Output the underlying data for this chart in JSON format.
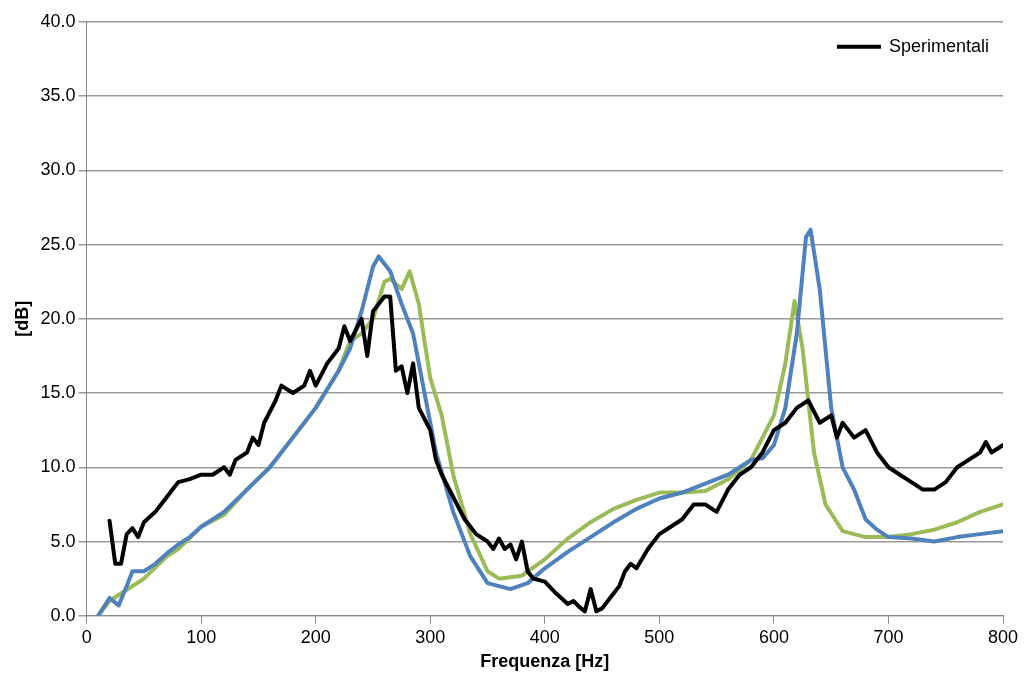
{
  "chart_data": {
    "type": "line",
    "xlabel": "Frequenza [Hz]",
    "ylabel": "[dB]",
    "xlim": [
      0,
      800
    ],
    "xticks": [
      0,
      100,
      200,
      300,
      400,
      500,
      600,
      700,
      800
    ],
    "ylim": [
      0,
      40
    ],
    "yticks": [
      {
        "value": 0,
        "label": "0.0"
      },
      {
        "value": 5,
        "label": "5.0"
      },
      {
        "value": 10,
        "label": "10.0"
      },
      {
        "value": 15,
        "label": "15.0"
      },
      {
        "value": 20,
        "label": "20.0"
      },
      {
        "value": 25,
        "label": "25.0"
      },
      {
        "value": 30,
        "label": "30.0"
      },
      {
        "value": 35,
        "label": "35.0"
      },
      {
        "value": 40,
        "label": "40.0"
      }
    ],
    "grid": "y",
    "legend": "top right",
    "marker": "none",
    "line_style": "solid",
    "series": [
      {
        "name": "Sperimentali",
        "color": "#000000",
        "x": [
          20,
          25,
          30,
          35,
          40,
          45,
          50,
          60,
          70,
          75,
          80,
          90,
          100,
          110,
          120,
          125,
          130,
          140,
          145,
          150,
          155,
          165,
          170,
          180,
          190,
          195,
          200,
          210,
          220,
          225,
          230,
          240,
          245,
          250,
          260,
          265,
          270,
          275,
          280,
          285,
          290,
          300,
          305,
          310,
          320,
          330,
          340,
          350,
          355,
          360,
          365,
          370,
          375,
          380,
          385,
          390,
          400,
          410,
          420,
          425,
          430,
          435,
          440,
          445,
          450,
          460,
          465,
          470,
          475,
          480,
          490,
          500,
          510,
          520,
          530,
          540,
          550,
          560,
          570,
          580,
          590,
          600,
          610,
          620,
          630,
          640,
          650,
          655,
          660,
          670,
          680,
          690,
          700,
          710,
          720,
          730,
          740,
          750,
          760,
          770,
          780,
          785,
          790,
          800
        ],
        "values": [
          6.4,
          3.5,
          3.5,
          5.5,
          5.9,
          5.3,
          6.3,
          7,
          8,
          8.5,
          9,
          9.2,
          9.5,
          9.5,
          10,
          9.5,
          10.5,
          11,
          12,
          11.5,
          13,
          14.5,
          15.5,
          15,
          15.5,
          16.5,
          15.5,
          17,
          18,
          19.5,
          18.5,
          20,
          17.5,
          20.5,
          21.5,
          21.5,
          16.5,
          16.8,
          15,
          17,
          14,
          12.5,
          10.5,
          9.5,
          8,
          6.5,
          5.5,
          5,
          4.5,
          5.2,
          4.5,
          4.8,
          3.8,
          5,
          3,
          2.5,
          2.3,
          1.5,
          0.8,
          1,
          0.6,
          0.3,
          1.8,
          0.3,
          0.5,
          1.5,
          2,
          3,
          3.5,
          3.2,
          4.5,
          5.5,
          6,
          6.5,
          7.5,
          7.5,
          7,
          8.5,
          9.5,
          10,
          11,
          12.5,
          13,
          14,
          14.5,
          13,
          13.5,
          12,
          13,
          12,
          12.5,
          11,
          10,
          9.5,
          9,
          8.5,
          8.5,
          9,
          10,
          10.5,
          11,
          11.7,
          11,
          11.5
        ]
      },
      {
        "color": "#4f81bd",
        "x": [
          10,
          20,
          28,
          35,
          40,
          50,
          60,
          70,
          80,
          90,
          100,
          120,
          140,
          160,
          180,
          200,
          220,
          230,
          240,
          250,
          255,
          265,
          275,
          285,
          295,
          305,
          320,
          335,
          350,
          370,
          385,
          400,
          420,
          440,
          460,
          480,
          500,
          520,
          540,
          560,
          580,
          590,
          600,
          610,
          620,
          628,
          632,
          640,
          650,
          660,
          670,
          680,
          690,
          700,
          720,
          740,
          760,
          780,
          800
        ],
        "values": [
          0,
          1.2,
          0.7,
          2,
          3,
          3,
          3.5,
          4.2,
          4.8,
          5.3,
          6,
          7,
          8.5,
          10,
          12,
          14,
          16.5,
          18,
          20.5,
          23.5,
          24.2,
          23.2,
          21,
          19,
          15,
          11,
          7,
          4,
          2.2,
          1.8,
          2.2,
          3.2,
          4.3,
          5.3,
          6.3,
          7.2,
          7.9,
          8.3,
          8.9,
          9.5,
          10.5,
          10.6,
          11.5,
          14,
          19,
          25.5,
          26,
          22,
          14,
          10,
          8.5,
          6.5,
          5.8,
          5.3,
          5.2,
          5,
          5.3,
          5.5,
          5.7
        ]
      },
      {
        "color": "#9bbb59",
        "x": [
          10,
          20,
          30,
          50,
          70,
          80,
          100,
          120,
          140,
          160,
          180,
          200,
          220,
          230,
          240,
          250,
          260,
          265,
          275,
          282,
          290,
          300,
          310,
          320,
          335,
          350,
          360,
          380,
          400,
          420,
          440,
          460,
          480,
          500,
          520,
          540,
          560,
          580,
          600,
          610,
          618,
          625,
          635,
          645,
          660,
          680,
          700,
          720,
          740,
          760,
          780,
          800
        ],
        "values": [
          0,
          1,
          1.5,
          2.5,
          4,
          4.5,
          6,
          6.8,
          8.5,
          10,
          12,
          14,
          16.5,
          18.5,
          19,
          20,
          22.5,
          22.7,
          22,
          23.2,
          21,
          16,
          13.5,
          9.5,
          5.5,
          3,
          2.5,
          2.7,
          3.8,
          5.2,
          6.3,
          7.2,
          7.8,
          8.3,
          8.3,
          8.4,
          9.2,
          10.5,
          13.5,
          17,
          21.2,
          18,
          11,
          7.5,
          5.7,
          5.3,
          5.3,
          5.5,
          5.8,
          6.3,
          7,
          7.5
        ]
      }
    ]
  }
}
